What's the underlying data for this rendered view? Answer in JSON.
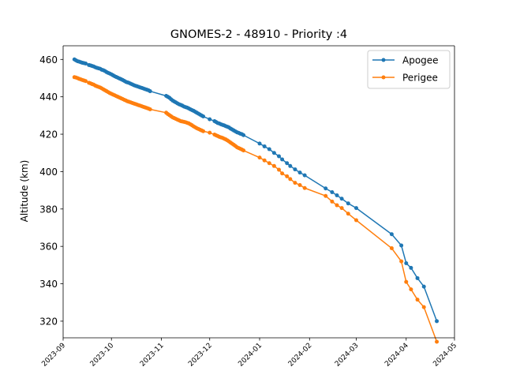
{
  "chart_data": {
    "type": "line",
    "title": "GNOMES-2 - 48910 - Priority :4",
    "xlabel": "",
    "ylabel": "Altitude (km)",
    "x_type": "date",
    "xlim": [
      "2023-09-01",
      "2024-05-01"
    ],
    "ylim": [
      311.1,
      467.3
    ],
    "x_ticks": [
      "2023-09",
      "2023-10",
      "2023-11",
      "2023-12",
      "2024-01",
      "2024-02",
      "2024-03",
      "2024-04",
      "2024-05"
    ],
    "x_tick_dates": [
      "2023-09-01",
      "2023-10-01",
      "2023-11-01",
      "2023-12-01",
      "2024-01-01",
      "2024-02-01",
      "2024-03-01",
      "2024-04-01",
      "2024-05-01"
    ],
    "y_ticks": [
      320,
      340,
      360,
      380,
      400,
      420,
      440,
      460
    ],
    "grid": false,
    "legend": {
      "position": "top-right"
    },
    "series": [
      {
        "name": "Apogee",
        "color": "#1f77b4",
        "x": [
          "2023-09-08",
          "2023-09-09",
          "2023-09-10",
          "2023-09-11",
          "2023-09-12",
          "2023-09-13",
          "2023-09-14",
          "2023-09-15",
          "2023-09-17",
          "2023-09-18",
          "2023-09-19",
          "2023-09-20",
          "2023-09-21",
          "2023-09-22",
          "2023-09-23",
          "2023-09-24",
          "2023-09-25",
          "2023-09-26",
          "2023-09-27",
          "2023-09-28",
          "2023-09-29",
          "2023-09-30",
          "2023-10-01",
          "2023-10-02",
          "2023-10-03",
          "2023-10-04",
          "2023-10-05",
          "2023-10-06",
          "2023-10-07",
          "2023-10-08",
          "2023-10-09",
          "2023-10-10",
          "2023-10-11",
          "2023-10-12",
          "2023-10-13",
          "2023-10-14",
          "2023-10-15",
          "2023-10-16",
          "2023-10-17",
          "2023-10-18",
          "2023-10-19",
          "2023-10-20",
          "2023-10-21",
          "2023-10-22",
          "2023-10-23",
          "2023-10-24",
          "2023-10-25",
          "2023-11-04",
          "2023-11-05",
          "2023-11-06",
          "2023-11-07",
          "2023-11-08",
          "2023-11-09",
          "2023-11-10",
          "2023-11-11",
          "2023-11-12",
          "2023-11-13",
          "2023-11-14",
          "2023-11-15",
          "2023-11-16",
          "2023-11-17",
          "2023-11-18",
          "2023-11-19",
          "2023-11-20",
          "2023-11-21",
          "2023-11-22",
          "2023-11-23",
          "2023-11-24",
          "2023-11-25",
          "2023-11-26",
          "2023-11-27",
          "2023-12-01",
          "2023-12-04",
          "2023-12-05",
          "2023-12-06",
          "2023-12-07",
          "2023-12-08",
          "2023-12-09",
          "2023-12-10",
          "2023-12-11",
          "2023-12-12",
          "2023-12-13",
          "2023-12-14",
          "2023-12-15",
          "2023-12-16",
          "2023-12-17",
          "2023-12-18",
          "2023-12-19",
          "2023-12-20",
          "2023-12-21",
          "2023-12-22",
          "2024-01-01",
          "2024-01-04",
          "2024-01-07",
          "2024-01-10",
          "2024-01-13",
          "2024-01-15",
          "2024-01-18",
          "2024-01-20",
          "2024-01-23",
          "2024-01-26",
          "2024-01-29",
          "2024-02-11",
          "2024-02-15",
          "2024-02-18",
          "2024-02-21",
          "2024-02-25",
          "2024-03-01",
          "2024-03-23",
          "2024-03-29",
          "2024-04-01",
          "2024-04-04",
          "2024-04-08",
          "2024-04-12",
          "2024-04-20"
        ],
        "values": [
          460.0,
          459.5,
          459.0,
          458.8,
          458.5,
          458.2,
          458.0,
          457.8,
          457.0,
          456.8,
          456.5,
          456.2,
          455.8,
          455.5,
          455.2,
          455.0,
          454.5,
          454.2,
          453.8,
          453.2,
          452.8,
          452.4,
          452.0,
          451.5,
          451.0,
          450.6,
          450.2,
          449.8,
          449.4,
          449.0,
          448.5,
          448.0,
          447.7,
          447.4,
          447.0,
          446.6,
          446.2,
          445.9,
          445.6,
          445.3,
          445.0,
          444.7,
          444.4,
          444.1,
          443.8,
          443.5,
          443.0,
          440.5,
          440.0,
          439.5,
          438.7,
          438.0,
          437.5,
          437.0,
          436.5,
          436.0,
          435.7,
          435.3,
          434.8,
          434.5,
          434.2,
          433.8,
          433.3,
          432.9,
          432.5,
          432.0,
          431.5,
          431.0,
          430.5,
          430.0,
          429.5,
          428.0,
          427.0,
          426.5,
          426.0,
          425.7,
          425.3,
          425.0,
          424.7,
          424.3,
          424.0,
          423.6,
          423.0,
          422.5,
          422.0,
          421.5,
          421.0,
          420.7,
          420.3,
          420.0,
          419.5,
          415.0,
          413.5,
          412.0,
          410.0,
          408.2,
          406.5,
          404.5,
          403.0,
          401.2,
          399.5,
          398.0,
          391.0,
          389.0,
          387.3,
          385.5,
          383.0,
          380.5,
          366.5,
          360.5,
          351.0,
          348.5,
          343.0,
          338.5,
          320.0
        ]
      },
      {
        "name": "Perigee",
        "color": "#ff7f0e",
        "x": [
          "2023-09-08",
          "2023-09-09",
          "2023-09-10",
          "2023-09-11",
          "2023-09-12",
          "2023-09-13",
          "2023-09-14",
          "2023-09-15",
          "2023-09-17",
          "2023-09-18",
          "2023-09-19",
          "2023-09-20",
          "2023-09-21",
          "2023-09-22",
          "2023-09-23",
          "2023-09-24",
          "2023-09-25",
          "2023-09-26",
          "2023-09-27",
          "2023-09-28",
          "2023-09-29",
          "2023-09-30",
          "2023-10-01",
          "2023-10-02",
          "2023-10-03",
          "2023-10-04",
          "2023-10-05",
          "2023-10-06",
          "2023-10-07",
          "2023-10-08",
          "2023-10-09",
          "2023-10-10",
          "2023-10-11",
          "2023-10-12",
          "2023-10-13",
          "2023-10-14",
          "2023-10-15",
          "2023-10-16",
          "2023-10-17",
          "2023-10-18",
          "2023-10-19",
          "2023-10-20",
          "2023-10-21",
          "2023-10-22",
          "2023-10-23",
          "2023-10-24",
          "2023-10-25",
          "2023-11-04",
          "2023-11-05",
          "2023-11-06",
          "2023-11-07",
          "2023-11-08",
          "2023-11-09",
          "2023-11-10",
          "2023-11-11",
          "2023-11-12",
          "2023-11-13",
          "2023-11-14",
          "2023-11-15",
          "2023-11-16",
          "2023-11-17",
          "2023-11-18",
          "2023-11-19",
          "2023-11-20",
          "2023-11-21",
          "2023-11-22",
          "2023-11-23",
          "2023-11-24",
          "2023-11-25",
          "2023-11-26",
          "2023-11-27",
          "2023-12-01",
          "2023-12-04",
          "2023-12-05",
          "2023-12-06",
          "2023-12-07",
          "2023-12-08",
          "2023-12-09",
          "2023-12-10",
          "2023-12-11",
          "2023-12-12",
          "2023-12-13",
          "2023-12-14",
          "2023-12-15",
          "2023-12-16",
          "2023-12-17",
          "2023-12-18",
          "2023-12-19",
          "2023-12-20",
          "2023-12-21",
          "2023-12-22",
          "2024-01-01",
          "2024-01-04",
          "2024-01-07",
          "2024-01-10",
          "2024-01-13",
          "2024-01-15",
          "2024-01-18",
          "2024-01-20",
          "2024-01-23",
          "2024-01-26",
          "2024-01-29",
          "2024-02-11",
          "2024-02-15",
          "2024-02-18",
          "2024-02-21",
          "2024-02-25",
          "2024-03-01",
          "2024-03-23",
          "2024-03-29",
          "2024-04-01",
          "2024-04-04",
          "2024-04-08",
          "2024-04-12",
          "2024-04-20"
        ],
        "values": [
          450.5,
          450.3,
          450.0,
          449.6,
          449.3,
          449.0,
          448.7,
          448.4,
          447.5,
          447.2,
          446.8,
          446.5,
          446.0,
          445.6,
          445.3,
          445.0,
          444.5,
          444.0,
          443.5,
          443.0,
          442.5,
          442.0,
          441.6,
          441.2,
          440.8,
          440.4,
          440.0,
          439.6,
          439.2,
          438.8,
          438.4,
          438.0,
          437.6,
          437.3,
          437.0,
          436.7,
          436.4,
          436.1,
          435.8,
          435.5,
          435.2,
          434.9,
          434.6,
          434.3,
          434.0,
          433.7,
          433.3,
          431.5,
          430.8,
          430.2,
          429.6,
          429.0,
          428.6,
          428.2,
          427.8,
          427.4,
          427.0,
          426.8,
          426.6,
          426.4,
          426.1,
          425.8,
          425.3,
          424.8,
          424.2,
          423.7,
          423.2,
          422.8,
          422.4,
          422.0,
          421.6,
          420.8,
          419.8,
          419.4,
          419.0,
          418.6,
          418.3,
          418.0,
          417.6,
          417.2,
          416.7,
          416.1,
          415.5,
          414.9,
          414.3,
          413.7,
          413.0,
          412.6,
          412.2,
          411.8,
          411.3,
          407.5,
          406.0,
          404.5,
          403.0,
          401.0,
          399.0,
          397.5,
          396.0,
          394.0,
          392.8,
          391.2,
          387.0,
          384.0,
          382.0,
          380.5,
          377.5,
          374.0,
          359.0,
          352.0,
          341.0,
          337.0,
          331.5,
          327.5,
          309.0
        ]
      }
    ]
  }
}
